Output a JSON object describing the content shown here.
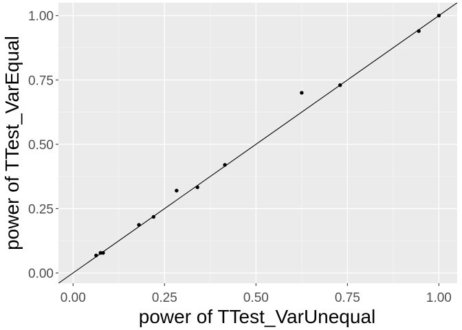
{
  "chart_data": {
    "type": "scatter",
    "xlabel": "power of TTest_VarUnequal",
    "ylabel": "power of TTest_VarEqual",
    "xlim": [
      -0.04,
      1.05
    ],
    "ylim": [
      -0.04,
      1.05
    ],
    "x_ticks": [
      0.0,
      0.25,
      0.5,
      0.75,
      1.0
    ],
    "x_tick_labels": [
      "0.00",
      "0.25",
      "0.50",
      "0.75",
      "1.00"
    ],
    "y_ticks": [
      0.0,
      0.25,
      0.5,
      0.75,
      1.0
    ],
    "y_tick_labels": [
      "0.00",
      "0.25",
      "0.50",
      "0.75",
      "1.00"
    ],
    "points": [
      {
        "x": 0.063,
        "y": 0.068
      },
      {
        "x": 0.075,
        "y": 0.078
      },
      {
        "x": 0.082,
        "y": 0.078
      },
      {
        "x": 0.18,
        "y": 0.187
      },
      {
        "x": 0.22,
        "y": 0.218
      },
      {
        "x": 0.283,
        "y": 0.32
      },
      {
        "x": 0.34,
        "y": 0.333
      },
      {
        "x": 0.415,
        "y": 0.42
      },
      {
        "x": 0.625,
        "y": 0.7
      },
      {
        "x": 0.73,
        "y": 0.73
      },
      {
        "x": 0.945,
        "y": 0.94
      },
      {
        "x": 1.0,
        "y": 1.0
      }
    ],
    "reference_line": {
      "slope": 1,
      "intercept": 0
    },
    "grid": true,
    "legend": "none",
    "colors": {
      "panel_background": "#ebebeb",
      "grid_major": "#ffffff",
      "grid_minor": "#f5f5f5",
      "point": "#000000",
      "line": "#000000",
      "tick_label": "#4d4d4d",
      "axis_title": "#000000"
    }
  }
}
